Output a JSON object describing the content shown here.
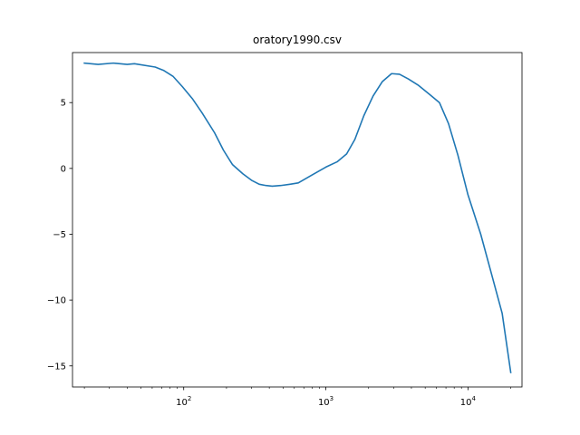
{
  "chart_data": {
    "type": "line",
    "title": "oratory1990.csv",
    "xlabel": "",
    "ylabel": "",
    "x_scale": "log",
    "xlim": [
      16.5,
      24000
    ],
    "ylim": [
      -16.6,
      8.8
    ],
    "x_ticks": [
      {
        "value": 100,
        "base": "10",
        "exp": "2"
      },
      {
        "value": 1000,
        "base": "10",
        "exp": "3"
      },
      {
        "value": 10000,
        "base": "10",
        "exp": "4"
      }
    ],
    "y_ticks": [
      {
        "value": 5,
        "label": "5"
      },
      {
        "value": 0,
        "label": "0"
      },
      {
        "value": -5,
        "label": "−5"
      },
      {
        "value": -10,
        "label": "−10"
      },
      {
        "value": -15,
        "label": "−15"
      }
    ],
    "grid": false,
    "colors": {
      "line": "#1f77b4"
    },
    "series": [
      {
        "x": [
          20,
          25,
          32,
          40,
          45,
          63,
          72,
          84,
          98,
          115,
          135,
          165,
          190,
          220,
          260,
          300,
          340,
          380,
          420,
          480,
          560,
          640,
          800,
          1000,
          1200,
          1400,
          1600,
          1850,
          2150,
          2500,
          2900,
          3300,
          3800,
          4500,
          5400,
          6300,
          7300,
          8500,
          10000,
          12300,
          14800,
          17400,
          20000
        ],
        "y": [
          8.0,
          7.9,
          8.0,
          7.9,
          7.95,
          7.7,
          7.45,
          7.0,
          6.2,
          5.3,
          4.2,
          2.7,
          1.4,
          0.3,
          -0.4,
          -0.9,
          -1.2,
          -1.3,
          -1.35,
          -1.3,
          -1.2,
          -1.1,
          -0.5,
          0.1,
          0.5,
          1.1,
          2.2,
          4.0,
          5.5,
          6.6,
          7.2,
          7.15,
          6.8,
          6.3,
          5.6,
          5.0,
          3.4,
          1.0,
          -2.0,
          -5.0,
          -8.2,
          -11.0,
          -15.5
        ]
      }
    ]
  }
}
